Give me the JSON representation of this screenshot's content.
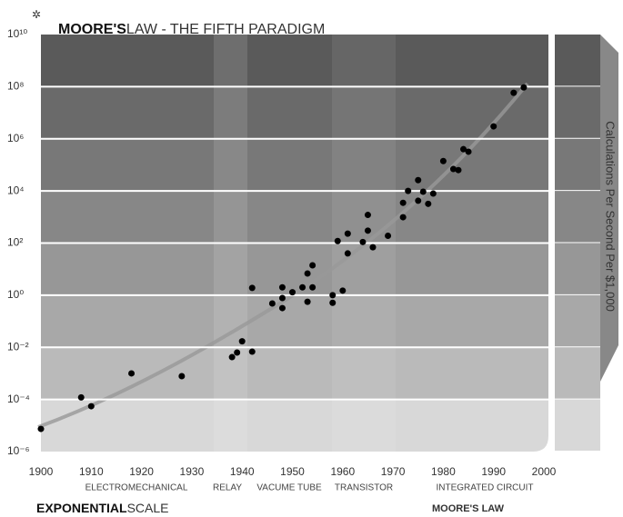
{
  "chart_data": {
    "type": "scatter",
    "title_bold": "MOORE'S",
    "title": "LAW - THE FIFTH PARADIGM",
    "footer_bold": "EXPONENTIAL",
    "footer": "SCALE",
    "footer_right": "MOORE'S LAW",
    "y_label": "Calculations Per Second Per $1,000",
    "eras": [
      "ELECTROMECHANICAL",
      "RELAY",
      "VACUME TUBE",
      "TRANSISTOR",
      "INTEGRATED CIRCUIT"
    ],
    "y_scale": "log",
    "grid": true,
    "color": "#000000",
    "x": [
      1900,
      1908,
      1910,
      1918,
      1928,
      1938,
      1939,
      1940,
      1942,
      1942,
      1946,
      1948,
      1948,
      1948,
      1950,
      1952,
      1953,
      1953,
      1954,
      1954,
      1958,
      1958,
      1960,
      1959,
      1961,
      1961,
      1964,
      1965,
      1965,
      1966,
      1969,
      1972,
      1972,
      1973,
      1975,
      1975,
      1976,
      1977,
      1978,
      1980,
      1982,
      1983,
      1984,
      1985,
      1990,
      1994,
      1996
    ],
    "values": [
      7.4e-06,
      0.00012,
      5.5e-05,
      0.001,
      0.00078,
      0.0042,
      0.0063,
      0.017,
      0.0068,
      1.9,
      0.48,
      0.32,
      2.0,
      0.78,
      1.3,
      2.0,
      6.8,
      0.56,
      2.0,
      14,
      1.0,
      0.51,
      1.5,
      120,
      230,
      40,
      110,
      300,
      1200,
      69,
      190,
      980,
      3500,
      10000,
      4200,
      26000,
      9300,
      3200,
      7900,
      140000,
      69000,
      63000,
      400000,
      320000,
      3000000,
      58000000,
      93000000
    ],
    "xlim": [
      1900,
      2000
    ],
    "xticks": [
      1900,
      1910,
      1920,
      1930,
      1940,
      1950,
      1960,
      1970,
      1980,
      1990,
      2000
    ],
    "ylim": [
      1e-06,
      10000000000.0
    ],
    "yticks": [
      {
        "value": 1e-06,
        "label": "10⁻⁶"
      },
      {
        "value": 0.0001,
        "label": "10⁻⁴"
      },
      {
        "value": 0.01,
        "label": "10⁻²"
      },
      {
        "value": 1,
        "label": "10⁰"
      },
      {
        "value": 100,
        "label": "10²"
      },
      {
        "value": 10000,
        "label": "10⁴"
      },
      {
        "value": 1000000,
        "label": "10⁶"
      },
      {
        "value": 100000000,
        "label": "10⁸"
      },
      {
        "value": 10000000000,
        "label": "10¹⁰"
      }
    ]
  }
}
